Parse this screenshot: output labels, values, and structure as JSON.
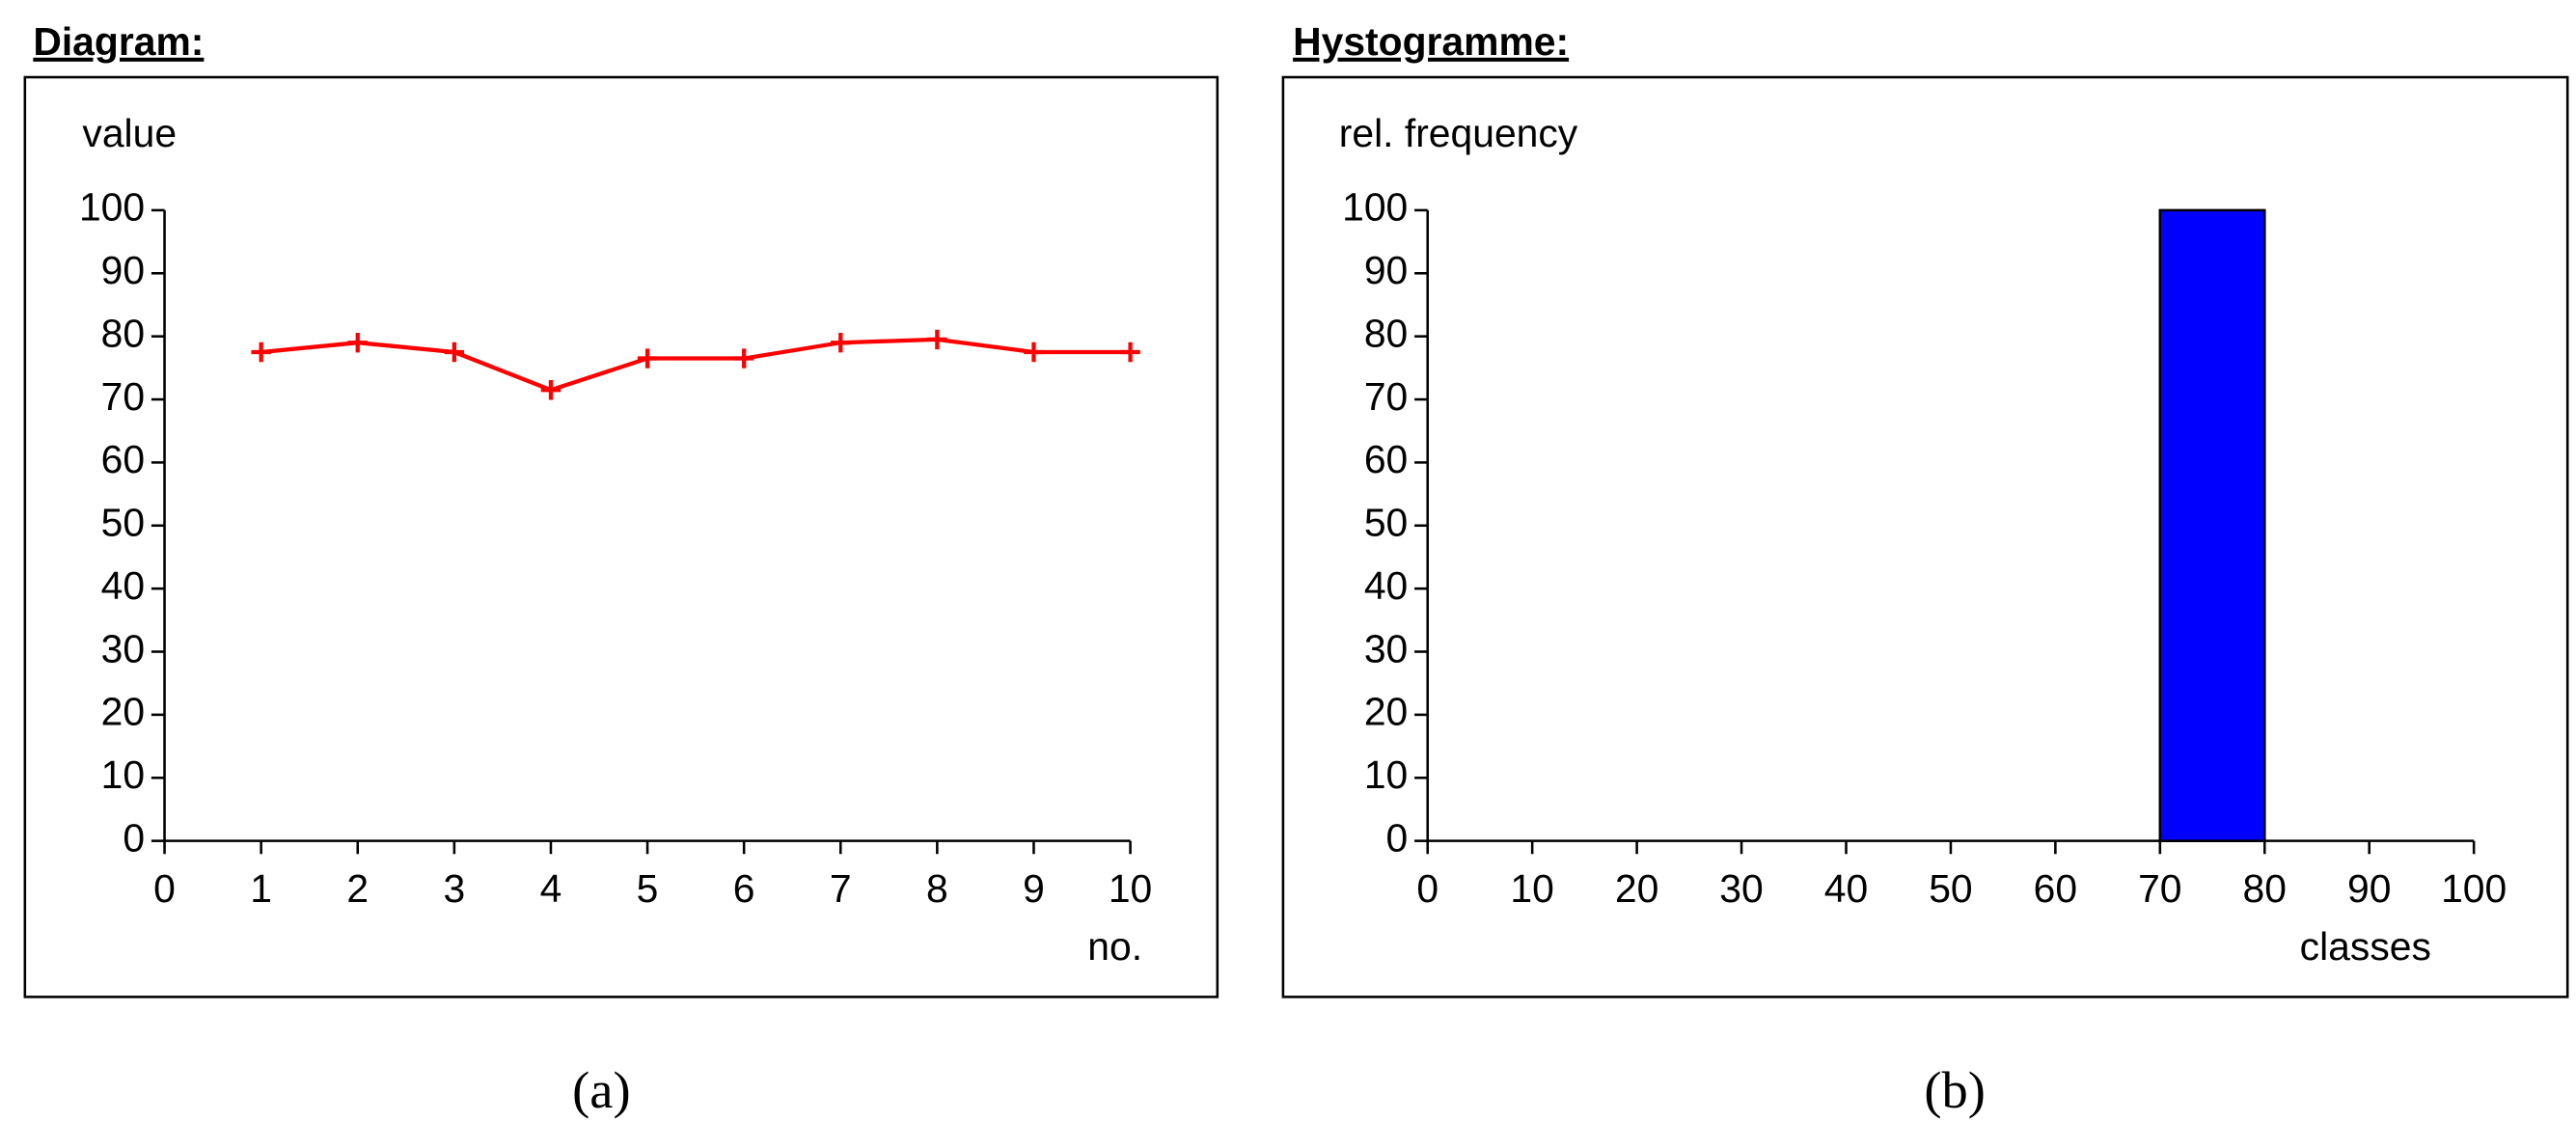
{
  "chart_data": [
    {
      "type": "line",
      "title": "Diagram:",
      "y_label": "value",
      "x_label": "no.",
      "caption": "(a)",
      "x": [
        1,
        2,
        3,
        4,
        5,
        6,
        7,
        8,
        9,
        10
      ],
      "values": [
        77.5,
        79,
        77.5,
        71.5,
        76.5,
        76.5,
        79,
        79.5,
        77.5,
        77.5
      ],
      "color": "#ff0000",
      "xlim": [
        0,
        10
      ],
      "xticks": [
        0,
        1,
        2,
        3,
        4,
        5,
        6,
        7,
        8,
        9,
        10
      ],
      "ylim": [
        0,
        100
      ],
      "yticks": [
        0,
        10,
        20,
        30,
        40,
        50,
        60,
        70,
        80,
        90,
        100
      ]
    },
    {
      "type": "histogram",
      "title": "Hystogramme:",
      "y_label": "rel. frequency",
      "x_label": "classes",
      "caption": "(b)",
      "bins": [
        0,
        10,
        20,
        30,
        40,
        50,
        60,
        70,
        80,
        90,
        100
      ],
      "counts": [
        0,
        0,
        0,
        0,
        0,
        0,
        0,
        100,
        0,
        0
      ],
      "color": "#0000ff",
      "xlim": [
        0,
        100
      ],
      "xticks": [
        0,
        10,
        20,
        30,
        40,
        50,
        60,
        70,
        80,
        90,
        100
      ],
      "ylim": [
        0,
        100
      ],
      "yticks": [
        0,
        10,
        20,
        30,
        40,
        50,
        60,
        70,
        80,
        90,
        100
      ]
    }
  ]
}
